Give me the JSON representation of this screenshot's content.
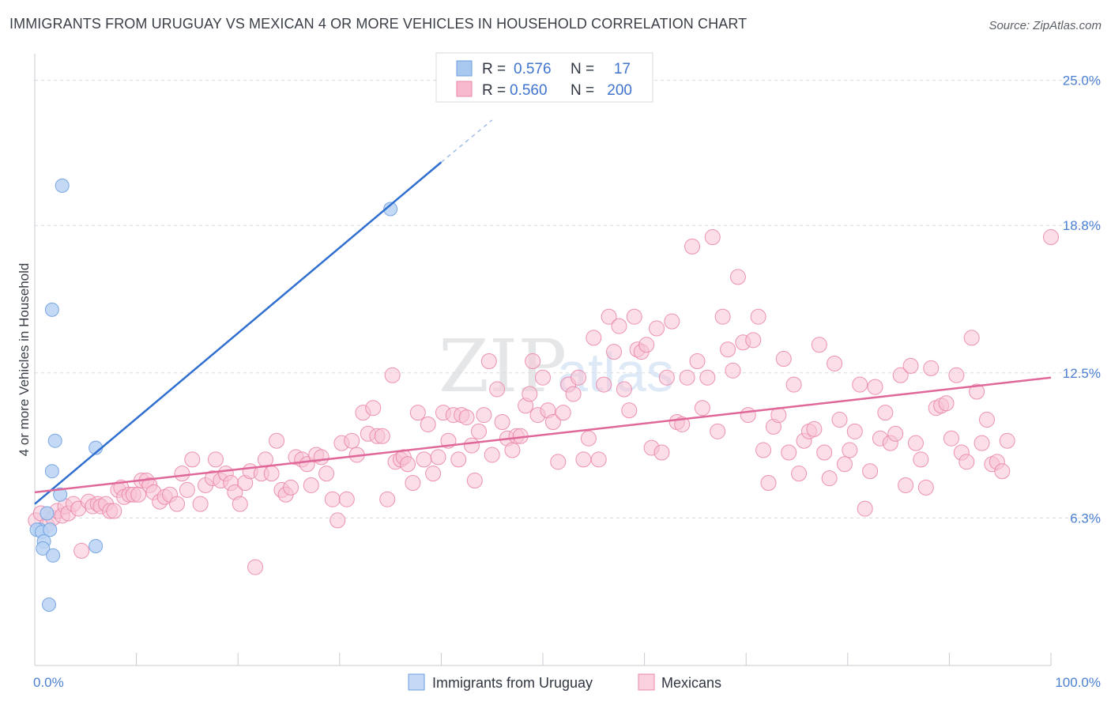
{
  "header": {
    "title": "IMMIGRANTS FROM URUGUAY VS MEXICAN 4 OR MORE VEHICLES IN HOUSEHOLD CORRELATION CHART",
    "source": "Source: ZipAtlas.com"
  },
  "legend": {
    "rows": [
      {
        "r_label": "R =",
        "r_value": "0.576",
        "n_label": "N =",
        "n_value": "17",
        "color": "#a9c8f0",
        "stroke": "#6d9ee0"
      },
      {
        "r_label": "R =",
        "r_value": "0.560",
        "n_label": "N =",
        "n_value": "200",
        "color": "#f7b9cd",
        "stroke": "#ea87a9"
      }
    ]
  },
  "bottom_legend": {
    "items": [
      {
        "label": "Immigrants from Uruguay",
        "color": "#c3d9f5",
        "stroke": "#6d9ee0"
      },
      {
        "label": "Mexicans",
        "color": "#fbd0de",
        "stroke": "#ea87a9"
      }
    ]
  },
  "watermark": {
    "zip": "ZIP",
    "atlas": "atlas"
  },
  "chart_data": {
    "type": "scatter",
    "ylabel": "4 or more Vehicles in Household",
    "xlim": [
      0,
      100
    ],
    "ylim": [
      0,
      26
    ],
    "x_tick_labels": [
      {
        "value": 0,
        "label": "0.0%"
      },
      {
        "value": 100,
        "label": "100.0%"
      }
    ],
    "y_tick_labels": [
      {
        "value": 6.3,
        "label": "6.3%"
      },
      {
        "value": 12.5,
        "label": "12.5%"
      },
      {
        "value": 18.8,
        "label": "18.8%"
      },
      {
        "value": 25.0,
        "label": "25.0%"
      }
    ],
    "grid": "horizontal dashed",
    "series": [
      {
        "name": "Immigrants from Uruguay",
        "color": "#6d9ee0",
        "fill": "#b9d2f3",
        "trend": {
          "x0": 0,
          "y0": 6.9,
          "x1": 40,
          "y1": 21.5,
          "dashed_to_x": 45,
          "dashed_to_y": 23.3
        },
        "points": [
          [
            2.7,
            20.5
          ],
          [
            35,
            19.5
          ],
          [
            1.7,
            15.2
          ],
          [
            2,
            9.6
          ],
          [
            6,
            9.3
          ],
          [
            1.7,
            8.3
          ],
          [
            2.5,
            7.3
          ],
          [
            1.2,
            6.5
          ],
          [
            0.5,
            5.8
          ],
          [
            0.2,
            5.8
          ],
          [
            0.7,
            5.7
          ],
          [
            1.5,
            5.8
          ],
          [
            0.9,
            5.3
          ],
          [
            0.8,
            5.0
          ],
          [
            1.8,
            4.7
          ],
          [
            6,
            5.1
          ],
          [
            1.4,
            2.6
          ]
        ]
      },
      {
        "name": "Mexicans",
        "color": "#ea87a9",
        "fill": "#f8c3d5",
        "trend": {
          "x0": 0,
          "y0": 7.4,
          "x1": 100,
          "y1": 12.3
        },
        "points": [
          [
            0.1,
            6.2
          ],
          [
            0.6,
            6.5
          ],
          [
            1.2,
            6.0
          ],
          [
            1.8,
            6.3
          ],
          [
            2.2,
            6.6
          ],
          [
            2.7,
            6.4
          ],
          [
            3.0,
            6.8
          ],
          [
            3.3,
            6.5
          ],
          [
            3.8,
            6.9
          ],
          [
            4.3,
            6.7
          ],
          [
            4.6,
            4.9
          ],
          [
            5.3,
            7.0
          ],
          [
            5.7,
            6.8
          ],
          [
            6.2,
            6.9
          ],
          [
            6.5,
            6.8
          ],
          [
            7.0,
            6.9
          ],
          [
            7.4,
            6.6
          ],
          [
            7.8,
            6.6
          ],
          [
            8.2,
            7.5
          ],
          [
            8.5,
            7.6
          ],
          [
            8.8,
            7.2
          ],
          [
            9.3,
            7.3
          ],
          [
            9.7,
            7.3
          ],
          [
            10.2,
            7.3
          ],
          [
            10.5,
            7.9
          ],
          [
            11.0,
            7.9
          ],
          [
            11.3,
            7.7
          ],
          [
            11.7,
            7.4
          ],
          [
            12.3,
            7.0
          ],
          [
            12.8,
            7.2
          ],
          [
            13.3,
            7.3
          ],
          [
            14.0,
            6.9
          ],
          [
            14.5,
            8.2
          ],
          [
            15.0,
            7.5
          ],
          [
            15.5,
            8.8
          ],
          [
            16.3,
            6.9
          ],
          [
            16.8,
            7.7
          ],
          [
            17.5,
            8.0
          ],
          [
            17.8,
            8.8
          ],
          [
            18.3,
            7.9
          ],
          [
            18.8,
            8.2
          ],
          [
            19.3,
            7.8
          ],
          [
            19.7,
            7.4
          ],
          [
            20.2,
            6.9
          ],
          [
            20.7,
            7.8
          ],
          [
            21.2,
            8.3
          ],
          [
            21.7,
            4.2
          ],
          [
            22.3,
            8.2
          ],
          [
            22.7,
            8.8
          ],
          [
            23.3,
            8.2
          ],
          [
            23.8,
            9.6
          ],
          [
            24.3,
            7.5
          ],
          [
            24.7,
            7.3
          ],
          [
            25.2,
            7.6
          ],
          [
            25.7,
            8.9
          ],
          [
            26.3,
            8.8
          ],
          [
            26.8,
            8.6
          ],
          [
            27.2,
            7.7
          ],
          [
            27.7,
            9.0
          ],
          [
            28.2,
            8.9
          ],
          [
            28.7,
            8.2
          ],
          [
            29.3,
            7.1
          ],
          [
            29.8,
            6.2
          ],
          [
            30.2,
            9.5
          ],
          [
            30.7,
            7.1
          ],
          [
            31.2,
            9.6
          ],
          [
            31.7,
            9.0
          ],
          [
            32.3,
            10.8
          ],
          [
            32.8,
            9.9
          ],
          [
            33.3,
            11.0
          ],
          [
            33.7,
            9.8
          ],
          [
            34.2,
            9.8
          ],
          [
            34.7,
            7.1
          ],
          [
            35.2,
            12.4
          ],
          [
            35.5,
            8.7
          ],
          [
            36.0,
            8.8
          ],
          [
            36.3,
            8.9
          ],
          [
            36.7,
            8.6
          ],
          [
            37.2,
            7.8
          ],
          [
            37.7,
            10.8
          ],
          [
            38.3,
            8.8
          ],
          [
            38.7,
            10.3
          ],
          [
            39.2,
            8.2
          ],
          [
            39.7,
            8.9
          ],
          [
            40.2,
            10.8
          ],
          [
            40.7,
            9.6
          ],
          [
            41.2,
            10.7
          ],
          [
            41.7,
            8.8
          ],
          [
            42.0,
            10.7
          ],
          [
            42.5,
            10.6
          ],
          [
            43.0,
            9.4
          ],
          [
            43.3,
            7.9
          ],
          [
            43.7,
            10.0
          ],
          [
            44.2,
            10.7
          ],
          [
            44.7,
            13.0
          ],
          [
            45.0,
            9.0
          ],
          [
            45.5,
            11.8
          ],
          [
            46.0,
            10.4
          ],
          [
            46.5,
            9.7
          ],
          [
            47.0,
            9.2
          ],
          [
            47.4,
            9.8
          ],
          [
            47.8,
            9.8
          ],
          [
            48.3,
            11.1
          ],
          [
            48.7,
            11.6
          ],
          [
            49.0,
            13.0
          ],
          [
            49.5,
            10.7
          ],
          [
            50.0,
            12.3
          ],
          [
            50.5,
            10.9
          ],
          [
            51.0,
            10.4
          ],
          [
            51.5,
            8.7
          ],
          [
            52.0,
            10.8
          ],
          [
            52.5,
            12.0
          ],
          [
            53.0,
            11.6
          ],
          [
            53.5,
            12.3
          ],
          [
            54.0,
            8.8
          ],
          [
            54.5,
            9.7
          ],
          [
            55.0,
            14.0
          ],
          [
            55.5,
            8.8
          ],
          [
            56.0,
            12.0
          ],
          [
            56.5,
            14.9
          ],
          [
            57.0,
            13.4
          ],
          [
            57.5,
            14.5
          ],
          [
            58.0,
            11.8
          ],
          [
            58.5,
            10.9
          ],
          [
            59.0,
            14.9
          ],
          [
            59.3,
            13.5
          ],
          [
            59.7,
            13.4
          ],
          [
            60.2,
            13.7
          ],
          [
            60.7,
            9.3
          ],
          [
            61.2,
            14.4
          ],
          [
            61.7,
            9.1
          ],
          [
            62.2,
            12.3
          ],
          [
            62.7,
            14.7
          ],
          [
            63.2,
            10.4
          ],
          [
            63.7,
            10.3
          ],
          [
            64.2,
            12.3
          ],
          [
            64.7,
            17.9
          ],
          [
            65.2,
            13.0
          ],
          [
            65.7,
            11.0
          ],
          [
            66.2,
            12.3
          ],
          [
            66.7,
            18.3
          ],
          [
            67.2,
            10.0
          ],
          [
            67.7,
            14.9
          ],
          [
            68.2,
            13.5
          ],
          [
            68.7,
            12.6
          ],
          [
            69.2,
            16.6
          ],
          [
            69.7,
            13.8
          ],
          [
            70.2,
            10.7
          ],
          [
            70.7,
            13.9
          ],
          [
            71.2,
            14.9
          ],
          [
            71.7,
            9.2
          ],
          [
            72.2,
            7.8
          ],
          [
            72.7,
            10.2
          ],
          [
            73.2,
            10.7
          ],
          [
            73.7,
            13.1
          ],
          [
            74.2,
            9.1
          ],
          [
            74.7,
            12.0
          ],
          [
            75.2,
            8.2
          ],
          [
            75.7,
            9.6
          ],
          [
            76.2,
            10.0
          ],
          [
            76.7,
            10.1
          ],
          [
            77.2,
            13.7
          ],
          [
            77.7,
            9.1
          ],
          [
            78.2,
            8.0
          ],
          [
            78.7,
            12.9
          ],
          [
            79.2,
            10.5
          ],
          [
            79.7,
            8.6
          ],
          [
            80.2,
            9.2
          ],
          [
            80.7,
            10.0
          ],
          [
            81.2,
            12.0
          ],
          [
            81.7,
            6.7
          ],
          [
            82.2,
            8.3
          ],
          [
            82.7,
            11.9
          ],
          [
            83.2,
            9.7
          ],
          [
            83.7,
            10.8
          ],
          [
            84.2,
            9.5
          ],
          [
            84.7,
            9.9
          ],
          [
            85.2,
            12.4
          ],
          [
            85.7,
            7.7
          ],
          [
            86.2,
            12.8
          ],
          [
            86.7,
            9.5
          ],
          [
            87.2,
            8.8
          ],
          [
            87.7,
            7.6
          ],
          [
            88.2,
            12.7
          ],
          [
            88.7,
            11.0
          ],
          [
            89.2,
            11.1
          ],
          [
            89.7,
            11.2
          ],
          [
            90.2,
            9.7
          ],
          [
            90.7,
            12.4
          ],
          [
            91.2,
            9.1
          ],
          [
            91.7,
            8.7
          ],
          [
            92.2,
            14.0
          ],
          [
            92.7,
            11.7
          ],
          [
            93.2,
            9.5
          ],
          [
            93.7,
            10.5
          ],
          [
            94.2,
            8.6
          ],
          [
            94.7,
            8.7
          ],
          [
            95.2,
            8.3
          ],
          [
            95.7,
            9.6
          ],
          [
            100.0,
            18.3
          ]
        ]
      }
    ]
  }
}
